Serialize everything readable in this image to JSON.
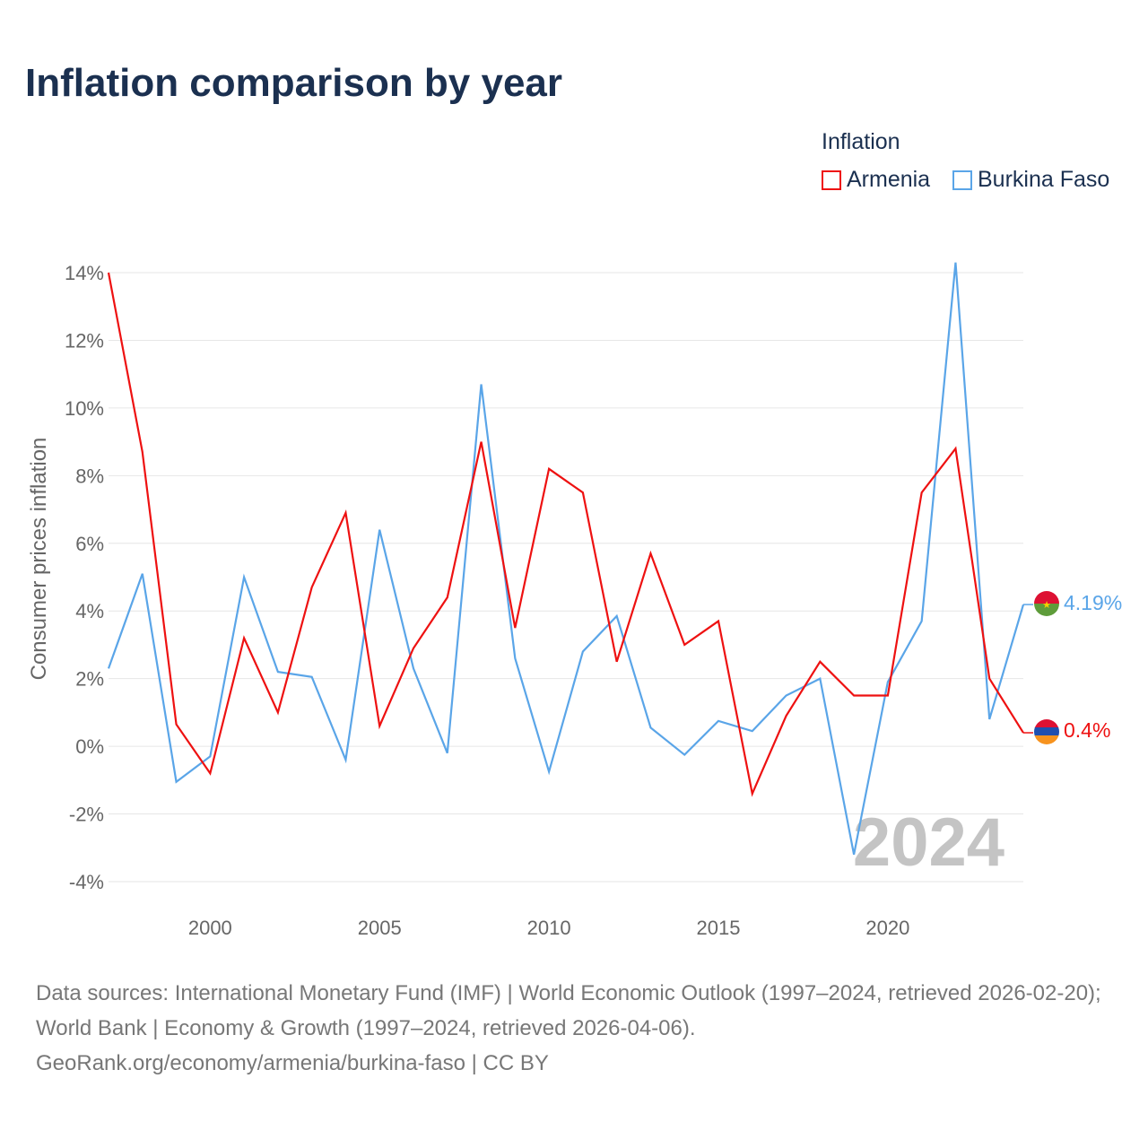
{
  "chart_data": {
    "type": "line",
    "title": "Inflation comparison by year",
    "ylabel": "Consumer prices inflation",
    "xlabel": "",
    "legend_title": "Inflation",
    "legend_position": "top-right",
    "ylim": [
      -4,
      14
    ],
    "xlim": [
      1997,
      2024
    ],
    "yticks": [
      "-4%",
      "-2%",
      "0%",
      "2%",
      "4%",
      "6%",
      "8%",
      "10%",
      "12%",
      "14%"
    ],
    "xticks": [
      "2000",
      "2005",
      "2010",
      "2015",
      "2020"
    ],
    "grid": true,
    "year_watermark": "2024",
    "x": [
      1997,
      1998,
      1999,
      2000,
      2001,
      2002,
      2003,
      2004,
      2005,
      2006,
      2007,
      2008,
      2009,
      2010,
      2011,
      2012,
      2013,
      2014,
      2015,
      2016,
      2017,
      2018,
      2019,
      2020,
      2021,
      2022,
      2023,
      2024
    ],
    "series": [
      {
        "name": "Armenia",
        "color": "#ee1111",
        "end_label": "0.4%",
        "values": [
          14.0,
          8.7,
          0.65,
          -0.8,
          3.2,
          1.0,
          4.7,
          6.9,
          0.6,
          2.9,
          4.4,
          9.0,
          3.5,
          8.2,
          7.5,
          2.5,
          5.7,
          3.0,
          3.7,
          -1.4,
          0.9,
          2.5,
          1.5,
          1.5,
          7.5,
          8.8,
          2.0,
          0.4
        ]
      },
      {
        "name": "Burkina Faso",
        "color": "#5aa5e8",
        "end_label": "4.19%",
        "values": [
          2.3,
          5.1,
          -1.05,
          -0.3,
          5.0,
          2.2,
          2.05,
          -0.4,
          6.4,
          2.3,
          -0.2,
          10.7,
          2.6,
          -0.75,
          2.8,
          3.85,
          0.55,
          -0.25,
          0.75,
          0.45,
          1.5,
          2.0,
          -3.2,
          1.9,
          3.7,
          14.3,
          0.8,
          4.19
        ]
      }
    ]
  },
  "footer": {
    "sources": "Data sources: International Monetary Fund (IMF) | World Economic Outlook (1997–2024, retrieved 2026-02-20); World Bank | Economy & Growth (1997–2024, retrieved 2026-04-06).",
    "link": "GeoRank.org/economy/armenia/burkina-faso | CC BY"
  }
}
